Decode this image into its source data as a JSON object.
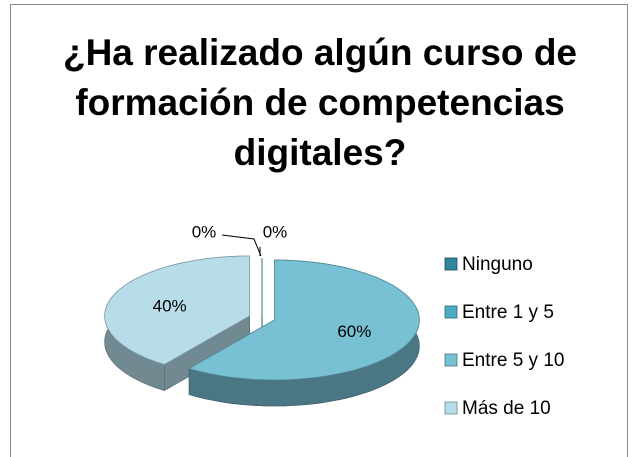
{
  "chart_data": {
    "type": "pie",
    "title": "¿Ha realizado algún curso de formación de competencias digitales?",
    "categories": [
      "Ninguno",
      "Entre 1 y 5",
      "Entre 5 y 10",
      "Más de 10"
    ],
    "values": [
      0,
      0,
      60,
      40
    ],
    "value_labels": [
      "0%",
      "0%",
      "60%",
      "40%"
    ],
    "colors": [
      "#31859c",
      "#4bacc6",
      "#78c0d4",
      "#b6dde8"
    ],
    "legend": "right"
  }
}
